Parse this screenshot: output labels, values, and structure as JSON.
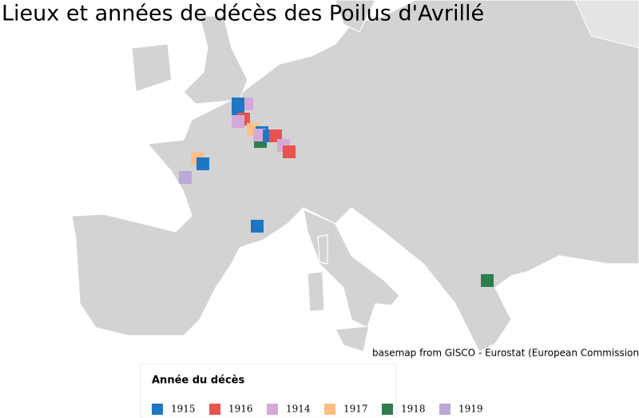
{
  "title": "Lieux et années de décès des Poilus d'Avrillé",
  "attribution": "basemap from GISCO - Eurostat (European Commission",
  "legend": {
    "title": "Année du décès",
    "items": [
      {
        "label": "1915",
        "color": "#1f77c4"
      },
      {
        "label": "1916",
        "color": "#e8534f"
      },
      {
        "label": "1914",
        "color": "#d4a9da"
      },
      {
        "label": "1917",
        "color": "#fcbf85"
      },
      {
        "label": "1918",
        "color": "#2e7d4f"
      },
      {
        "label": "1919",
        "color": "#bba8d6"
      }
    ]
  }
}
